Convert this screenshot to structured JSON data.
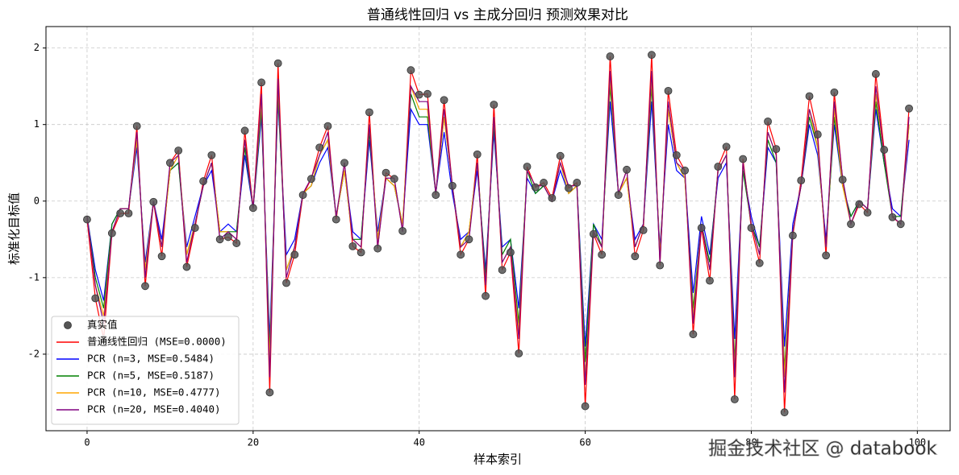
{
  "chart_data": {
    "type": "line",
    "title": "普通线性回归 vs 主成分回归 预测效果对比",
    "x_label": "样本索引",
    "y_label": "标准化目标值",
    "watermark": "掘金技术社区 @ databook",
    "x": [
      0,
      1,
      2,
      3,
      4,
      5,
      6,
      7,
      8,
      9,
      10,
      11,
      12,
      13,
      14,
      15,
      16,
      17,
      18,
      19,
      20,
      21,
      22,
      23,
      24,
      25,
      26,
      27,
      28,
      29,
      30,
      31,
      32,
      33,
      34,
      35,
      36,
      37,
      38,
      39,
      40,
      41,
      42,
      43,
      44,
      45,
      46,
      47,
      48,
      49,
      50,
      51,
      52,
      53,
      54,
      55,
      56,
      57,
      58,
      59,
      60,
      61,
      62,
      63,
      64,
      65,
      66,
      67,
      68,
      69,
      70,
      71,
      72,
      73,
      74,
      75,
      76,
      77,
      78,
      79,
      80,
      81,
      82,
      83,
      84,
      85,
      86,
      87,
      88,
      89,
      90,
      91,
      92,
      93,
      94,
      95,
      96,
      97,
      98,
      99
    ],
    "xlim": [
      -4.95,
      103.95
    ],
    "xticks": [
      0,
      20,
      40,
      60,
      80,
      100
    ],
    "ylim": [
      -3.0,
      2.28
    ],
    "yticks": [
      -2,
      -1,
      0,
      1,
      2
    ],
    "grid": true,
    "legend": "lower left",
    "series": [
      {
        "name": "真实值",
        "style": "marker",
        "color": "#555555",
        "values": [
          -0.24,
          -1.27,
          -1.8,
          -0.42,
          -0.16,
          -0.16,
          0.98,
          -1.11,
          -0.01,
          -0.72,
          0.5,
          0.66,
          -0.86,
          -0.35,
          0.26,
          0.6,
          -0.5,
          -0.47,
          -0.55,
          0.92,
          -0.09,
          1.55,
          -2.5,
          1.8,
          -1.07,
          -0.7,
          0.08,
          0.29,
          0.7,
          0.98,
          -0.24,
          0.5,
          -0.59,
          -0.67,
          1.16,
          -0.62,
          0.37,
          0.29,
          -0.39,
          1.71,
          1.39,
          1.4,
          0.08,
          1.32,
          0.2,
          -0.7,
          -0.5,
          0.61,
          -1.24,
          1.26,
          -0.9,
          -0.67,
          -1.99,
          0.45,
          0.18,
          0.24,
          0.04,
          0.59,
          0.17,
          0.24,
          -2.68,
          -0.43,
          -0.7,
          1.89,
          0.08,
          0.41,
          -0.72,
          -0.38,
          1.91,
          -0.84,
          1.44,
          0.6,
          0.4,
          -1.74,
          -0.35,
          -1.04,
          0.45,
          0.71,
          -2.59,
          0.55,
          -0.35,
          -0.81,
          1.04,
          0.68,
          -2.76,
          -0.45,
          0.27,
          1.37,
          0.87,
          -0.71,
          1.42,
          0.28,
          -0.3,
          -0.04,
          -0.15,
          1.66,
          0.67,
          -0.21,
          -0.3,
          1.21
        ]
      },
      {
        "name": "普通线性回归 (MSE=0.0000)",
        "style": "line",
        "color": "#ff0000",
        "values": [
          -0.24,
          -1.27,
          -1.8,
          -0.42,
          -0.16,
          -0.16,
          0.98,
          -1.11,
          -0.01,
          -0.72,
          0.5,
          0.66,
          -0.86,
          -0.35,
          0.26,
          0.6,
          -0.5,
          -0.47,
          -0.55,
          0.92,
          -0.09,
          1.55,
          -2.5,
          1.8,
          -1.07,
          -0.7,
          0.08,
          0.29,
          0.7,
          0.98,
          -0.24,
          0.5,
          -0.59,
          -0.67,
          1.16,
          -0.62,
          0.37,
          0.29,
          -0.39,
          1.71,
          1.39,
          1.4,
          0.08,
          1.32,
          0.2,
          -0.7,
          -0.5,
          0.61,
          -1.24,
          1.26,
          -0.9,
          -0.67,
          -1.99,
          0.45,
          0.18,
          0.24,
          0.04,
          0.59,
          0.17,
          0.24,
          -2.68,
          -0.43,
          -0.7,
          1.89,
          0.08,
          0.41,
          -0.72,
          -0.38,
          1.91,
          -0.84,
          1.44,
          0.6,
          0.4,
          -1.74,
          -0.35,
          -1.04,
          0.45,
          0.71,
          -2.59,
          0.55,
          -0.35,
          -0.81,
          1.04,
          0.68,
          -2.76,
          -0.45,
          0.27,
          1.37,
          0.87,
          -0.71,
          1.42,
          0.28,
          -0.3,
          -0.04,
          -0.15,
          1.66,
          0.67,
          -0.21,
          -0.3,
          1.21
        ]
      },
      {
        "name": "PCR (n=3, MSE=0.5484)",
        "style": "line",
        "color": "#0000ff",
        "values": [
          -0.2,
          -0.9,
          -1.3,
          -0.3,
          -0.1,
          -0.1,
          0.7,
          -0.8,
          0.0,
          -0.5,
          0.4,
          0.5,
          -0.6,
          -0.2,
          0.2,
          0.4,
          -0.4,
          -0.3,
          -0.4,
          0.6,
          -0.1,
          1.1,
          -1.8,
          1.3,
          -0.7,
          -0.5,
          0.1,
          0.2,
          0.5,
          0.7,
          -0.2,
          0.4,
          -0.4,
          -0.5,
          0.8,
          -0.4,
          0.3,
          0.2,
          -0.3,
          1.2,
          1.0,
          1.0,
          0.1,
          0.9,
          0.1,
          -0.5,
          -0.4,
          0.4,
          -0.9,
          0.9,
          -0.6,
          -0.5,
          -1.4,
          0.3,
          0.1,
          0.2,
          0.0,
          0.4,
          0.1,
          0.2,
          -1.9,
          -0.3,
          -0.5,
          1.3,
          0.1,
          0.3,
          -0.5,
          -0.3,
          1.3,
          -0.6,
          1.0,
          0.4,
          0.3,
          -1.2,
          -0.2,
          -0.7,
          0.3,
          0.5,
          -1.8,
          0.4,
          -0.2,
          -0.6,
          0.7,
          0.5,
          -1.9,
          -0.3,
          0.2,
          1.0,
          0.6,
          -0.5,
          1.0,
          0.2,
          -0.2,
          0.0,
          -0.1,
          1.2,
          0.5,
          -0.1,
          -0.2,
          0.8
        ]
      },
      {
        "name": "PCR (n=5, MSE=0.5187)",
        "style": "line",
        "color": "#008000",
        "values": [
          -0.2,
          -1.0,
          -1.4,
          -0.3,
          -0.1,
          -0.1,
          0.8,
          -0.9,
          0.0,
          -0.6,
          0.4,
          0.5,
          -0.7,
          -0.3,
          0.2,
          0.5,
          -0.4,
          -0.4,
          -0.4,
          0.7,
          -0.1,
          1.2,
          -2.0,
          1.4,
          -0.9,
          -0.6,
          0.1,
          0.2,
          0.6,
          0.8,
          -0.2,
          0.4,
          -0.5,
          -0.5,
          0.9,
          -0.5,
          0.3,
          0.2,
          -0.3,
          1.4,
          1.1,
          1.1,
          0.1,
          1.1,
          0.2,
          -0.6,
          -0.4,
          0.5,
          -1.0,
          1.0,
          -0.7,
          -0.5,
          -1.6,
          0.4,
          0.1,
          0.2,
          0.0,
          0.5,
          0.1,
          0.2,
          -2.1,
          -0.3,
          -0.6,
          1.5,
          0.1,
          0.3,
          -0.6,
          -0.3,
          1.5,
          -0.7,
          1.2,
          0.5,
          0.3,
          -1.4,
          -0.3,
          -0.8,
          0.4,
          0.6,
          -2.1,
          0.4,
          -0.3,
          -0.6,
          0.8,
          0.5,
          -2.2,
          -0.4,
          0.2,
          1.1,
          0.7,
          -0.6,
          1.1,
          0.2,
          -0.2,
          0.0,
          -0.1,
          1.3,
          0.5,
          -0.2,
          -0.2,
          1.0
        ]
      },
      {
        "name": "PCR (n=10, MSE=0.4777)",
        "style": "line",
        "color": "#ffa500",
        "values": [
          -0.2,
          -1.1,
          -1.5,
          -0.4,
          -0.1,
          -0.1,
          0.8,
          -0.9,
          0.0,
          -0.6,
          0.4,
          0.6,
          -0.7,
          -0.3,
          0.2,
          0.5,
          -0.4,
          -0.4,
          -0.5,
          0.8,
          -0.1,
          1.3,
          -2.1,
          1.5,
          -0.9,
          -0.6,
          0.1,
          0.2,
          0.6,
          0.8,
          -0.2,
          0.4,
          -0.5,
          -0.6,
          1.0,
          -0.5,
          0.3,
          0.2,
          -0.3,
          1.5,
          1.2,
          1.2,
          0.1,
          1.1,
          0.2,
          -0.6,
          -0.4,
          0.5,
          -1.1,
          1.1,
          -0.8,
          -0.6,
          -1.7,
          0.4,
          0.2,
          0.2,
          0.0,
          0.5,
          0.1,
          0.2,
          -2.3,
          -0.4,
          -0.6,
          1.6,
          0.1,
          0.3,
          -0.6,
          -0.3,
          1.6,
          -0.7,
          1.2,
          0.5,
          0.3,
          -1.5,
          -0.3,
          -0.9,
          0.4,
          0.6,
          -2.2,
          0.5,
          -0.3,
          -0.7,
          0.9,
          0.6,
          -2.3,
          -0.4,
          0.2,
          1.2,
          0.7,
          -0.6,
          1.2,
          0.2,
          -0.3,
          0.0,
          -0.1,
          1.4,
          0.6,
          -0.2,
          -0.3,
          1.0
        ]
      },
      {
        "name": "PCR (n=20, MSE=0.4040)",
        "style": "line",
        "color": "#800080",
        "values": [
          -0.2,
          -1.1,
          -1.6,
          -0.4,
          -0.1,
          -0.1,
          0.9,
          -1.0,
          0.0,
          -0.6,
          0.5,
          0.6,
          -0.8,
          -0.3,
          0.2,
          0.5,
          -0.5,
          -0.4,
          -0.5,
          0.8,
          -0.1,
          1.4,
          -2.3,
          1.6,
          -1.0,
          -0.6,
          0.1,
          0.3,
          0.6,
          0.9,
          -0.2,
          0.5,
          -0.5,
          -0.6,
          1.0,
          -0.6,
          0.3,
          0.3,
          -0.4,
          1.5,
          1.3,
          1.3,
          0.1,
          1.2,
          0.2,
          -0.6,
          -0.5,
          0.5,
          -1.1,
          1.1,
          -0.8,
          -0.6,
          -1.8,
          0.4,
          0.2,
          0.2,
          0.0,
          0.5,
          0.2,
          0.2,
          -2.4,
          -0.4,
          -0.6,
          1.7,
          0.1,
          0.4,
          -0.6,
          -0.3,
          1.7,
          -0.8,
          1.3,
          0.5,
          0.4,
          -1.6,
          -0.3,
          -0.9,
          0.4,
          0.6,
          -2.3,
          0.5,
          -0.3,
          -0.7,
          0.9,
          0.6,
          -2.5,
          -0.4,
          0.2,
          1.2,
          0.8,
          -0.6,
          1.3,
          0.3,
          -0.3,
          0.0,
          -0.1,
          1.5,
          0.6,
          -0.2,
          -0.3,
          1.1
        ]
      }
    ]
  }
}
